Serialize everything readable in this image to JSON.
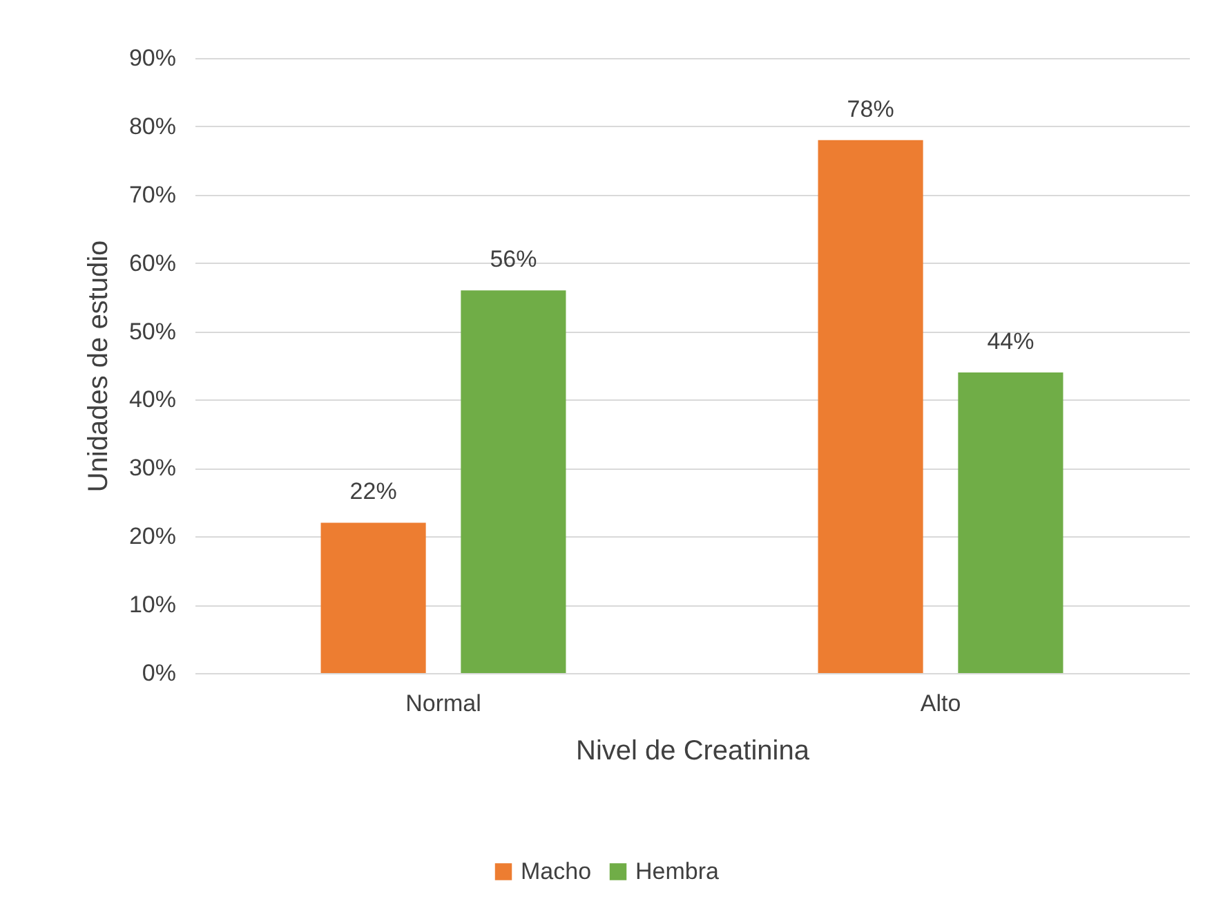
{
  "chart_data": {
    "type": "bar",
    "xlabel": "Nivel de Creatinina",
    "ylabel": "Unidades de estudio",
    "categories": [
      "Normal",
      "Alto"
    ],
    "series": [
      {
        "name": "Macho",
        "color": "#ed7d31",
        "values": [
          22,
          78
        ],
        "value_labels": [
          "22%",
          "78%"
        ]
      },
      {
        "name": "Hembra",
        "color": "#70ad47",
        "values": [
          56,
          44
        ],
        "value_labels": [
          "56%",
          "44%"
        ]
      }
    ],
    "ylim": [
      0,
      90
    ],
    "yticks": [
      {
        "value": 0,
        "label": "0%"
      },
      {
        "value": 10,
        "label": "10%"
      },
      {
        "value": 20,
        "label": "20%"
      },
      {
        "value": 30,
        "label": "30%"
      },
      {
        "value": 40,
        "label": "40%"
      },
      {
        "value": 50,
        "label": "50%"
      },
      {
        "value": 60,
        "label": "60%"
      },
      {
        "value": 70,
        "label": "70%"
      },
      {
        "value": 80,
        "label": "80%"
      },
      {
        "value": 90,
        "label": "90%"
      }
    ],
    "grid": "y",
    "legend": "bottom"
  }
}
